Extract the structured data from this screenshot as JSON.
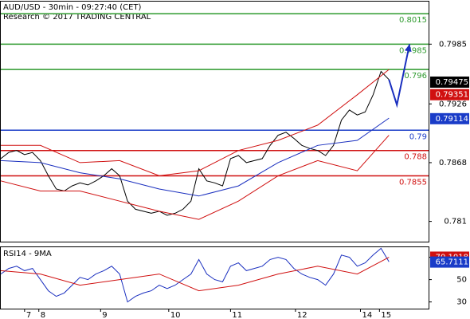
{
  "chart_data": [
    {
      "type": "line",
      "title": "AUD/USD - 30min - 09:27:40 (CET)",
      "subtitle": "Research © 2017 TRADING CENTRAL",
      "xlim": [
        0,
        270
      ],
      "xticks": [
        {
          "value": 15,
          "label": "7"
        },
        {
          "value": 24,
          "label": "8"
        },
        {
          "value": 63,
          "label": "9"
        },
        {
          "value": 106,
          "label": "10"
        },
        {
          "value": 145,
          "label": "11"
        },
        {
          "value": 186,
          "label": "12"
        },
        {
          "value": 227,
          "label": "14"
        },
        {
          "value": 239,
          "label": "15"
        }
      ],
      "x": [
        0,
        5,
        10,
        15,
        20,
        25,
        30,
        35,
        40,
        45,
        50,
        55,
        60,
        65,
        70,
        75,
        80,
        85,
        90,
        95,
        100,
        105,
        110,
        115,
        120,
        125,
        130,
        135,
        140,
        145,
        150,
        155,
        160,
        165,
        170,
        175,
        180,
        185,
        190,
        195,
        200,
        205,
        210,
        215,
        220,
        225,
        230,
        235,
        240,
        245
      ],
      "ylim": [
        0.779,
        0.8027
      ],
      "yticks": [
        0.7985,
        0.7926,
        0.7868,
        0.781
      ],
      "series": [
        {
          "color": "#000000",
          "values": [
            0.7872,
            0.7878,
            0.788,
            0.7876,
            0.7878,
            0.787,
            0.7855,
            0.7842,
            0.784,
            0.7845,
            0.7848,
            0.7846,
            0.785,
            0.7855,
            0.7862,
            0.7855,
            0.783,
            0.7822,
            0.782,
            0.7818,
            0.782,
            0.7816,
            0.7818,
            0.7822,
            0.783,
            0.7862,
            0.785,
            0.7848,
            0.7845,
            0.7872,
            0.7875,
            0.7868,
            0.787,
            0.7872,
            0.7885,
            0.7895,
            0.7898,
            0.7892,
            0.7885,
            0.7882,
            0.788,
            0.7875,
            0.7885,
            0.791,
            0.792,
            0.7915,
            0.7918,
            0.7935,
            0.7958,
            0.795
          ]
        },
        {
          "color": "#1a2fbf",
          "x": [
            0,
            25,
            50,
            75,
            100,
            125,
            150,
            175,
            200,
            225,
            245
          ],
          "values": [
            0.787,
            0.7868,
            0.7858,
            0.7852,
            0.7842,
            0.7835,
            0.7845,
            0.7868,
            0.7885,
            0.789,
            0.7912
          ]
        },
        {
          "color": "#d01010",
          "x": [
            0,
            25,
            50,
            75,
            100,
            125,
            150,
            175,
            200,
            225,
            245
          ],
          "values": [
            0.7885,
            0.7885,
            0.7868,
            0.787,
            0.7855,
            0.786,
            0.788,
            0.789,
            0.7905,
            0.7935,
            0.796
          ]
        },
        {
          "color": "#d01010",
          "x": [
            0,
            25,
            50,
            75,
            100,
            125,
            150,
            175,
            200,
            225,
            245
          ],
          "values": [
            0.785,
            0.784,
            0.784,
            0.783,
            0.782,
            0.7812,
            0.783,
            0.7855,
            0.787,
            0.786,
            0.7895
          ]
        }
      ],
      "levels": [
        {
          "value": 0.8015,
          "color": "#2e9a2e"
        },
        {
          "value": 0.7985,
          "color": "#2e9a2e"
        },
        {
          "value": 0.796,
          "color": "#2e9a2e"
        },
        {
          "value": 0.79,
          "color": "#1a3cc8"
        },
        {
          "value": 0.788,
          "color": "#d01010"
        },
        {
          "value": 0.7855,
          "color": "#d01010"
        }
      ],
      "markers": [
        {
          "value": 0.79475,
          "color": "#000000"
        },
        {
          "value": 0.79351,
          "color": "#d01010"
        },
        {
          "value": 0.79114,
          "color": "#1a3cc8"
        }
      ],
      "forecast": {
        "color": "#1a2fbf",
        "x": [
          245,
          250,
          258
        ],
        "values": [
          0.795,
          0.7925,
          0.7985
        ]
      }
    },
    {
      "type": "line",
      "title": "RSI14 - 9MA",
      "ylim": [
        24,
        79
      ],
      "yticks": [
        70,
        50,
        30
      ],
      "series": [
        {
          "color": "#1a2fbf",
          "values": [
            55,
            60,
            62,
            58,
            60,
            50,
            40,
            35,
            38,
            45,
            52,
            50,
            55,
            58,
            62,
            55,
            30,
            35,
            38,
            40,
            45,
            42,
            45,
            50,
            55,
            68,
            55,
            50,
            48,
            62,
            65,
            58,
            60,
            62,
            68,
            70,
            68,
            60,
            55,
            52,
            50,
            45,
            55,
            72,
            70,
            62,
            65,
            72,
            78,
            66
          ]
        },
        {
          "color": "#d01010",
          "x": [
            0,
            25,
            50,
            75,
            100,
            125,
            150,
            175,
            200,
            225,
            245
          ],
          "values": [
            58,
            55,
            45,
            50,
            55,
            40,
            45,
            55,
            62,
            55,
            70
          ]
        }
      ],
      "markers": [
        {
          "value": 70.1018,
          "color": "#d01010"
        },
        {
          "value": 65.7111,
          "color": "#1a3cc8"
        }
      ]
    }
  ]
}
